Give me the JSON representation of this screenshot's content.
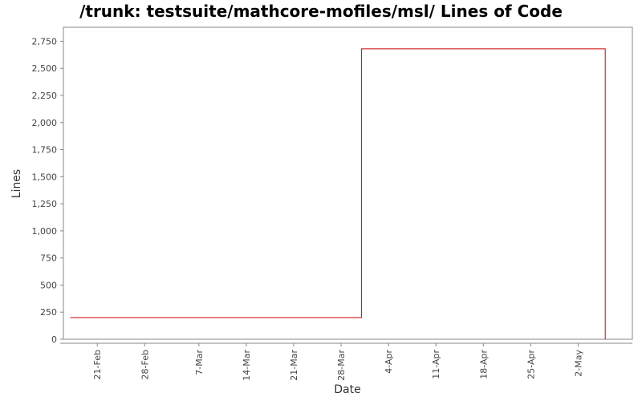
{
  "chart_data": {
    "type": "line",
    "title": "/trunk: testsuite/mathcore-mofiles/msl/ Lines of Code",
    "xlabel": "Date",
    "ylabel": "Lines",
    "x_axis_type": "date",
    "y_tick_labels": [
      "0",
      "250",
      "500",
      "750",
      "1,000",
      "1,250",
      "1,500",
      "1,750",
      "2,000",
      "2,250",
      "2,500",
      "2,750"
    ],
    "y_tick_values": [
      0,
      250,
      500,
      750,
      1000,
      1250,
      1500,
      1750,
      2000,
      2250,
      2500,
      2750
    ],
    "x_tick_labels": [
      "21-Feb",
      "28-Feb",
      "7-Mar",
      "14-Mar",
      "21-Mar",
      "28-Mar",
      "4-Apr",
      "11-Apr",
      "18-Apr",
      "25-Apr",
      "2-May"
    ],
    "x_tick_dates": [
      "2008-02-21",
      "2008-02-28",
      "2008-03-07",
      "2008-03-14",
      "2008-03-21",
      "2008-03-28",
      "2008-04-04",
      "2008-04-11",
      "2008-04-18",
      "2008-04-25",
      "2008-05-02"
    ],
    "xlim": [
      "2008-02-16",
      "2008-05-10"
    ],
    "ylim": [
      0,
      2820
    ],
    "grid": false,
    "series": [
      {
        "color": "#cc0000",
        "step": true,
        "points": [
          {
            "x": "2008-02-17",
            "y": 200
          },
          {
            "x": "2008-03-31",
            "y": 200
          },
          {
            "x": "2008-03-31",
            "y": 2680
          },
          {
            "x": "2008-05-06",
            "y": 2680
          },
          {
            "x": "2008-05-06",
            "y": 0
          }
        ]
      }
    ]
  }
}
